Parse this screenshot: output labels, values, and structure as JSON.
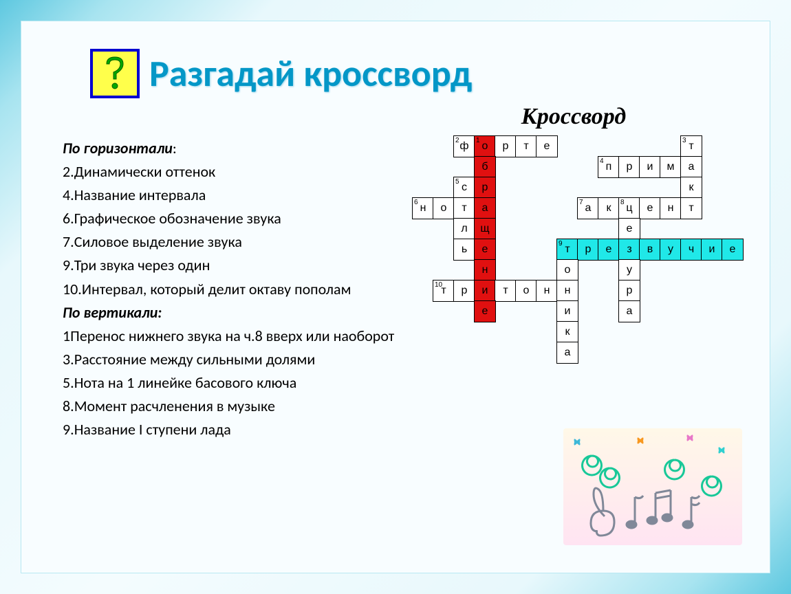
{
  "title": "Разгадай кроссворд",
  "crossword_label": "Кроссворд",
  "clues": {
    "horizontal_header": "По горизонтали",
    "horizontal": [
      "2.Динамически    оттенок",
      "4.Название интервала",
      "6.Графическое обозначение звука",
      "7.Силовое выделение звука",
      "9.Три звука через один",
      "10.Интервал, который делит октаву пополам"
    ],
    "vertical_header": "По вертикали:",
    "vertical": [
      "1Перенос нижнего звука на ч.8 вверх или наоборот",
      "3.Расстояние между сильными долями",
      "5.Нота на 1 линейке басового ключа",
      "8.Момент расчленения в музыке",
      "9.Название I ступени лада"
    ]
  },
  "crossword": {
    "cell_size": 32,
    "colors": {
      "default": "#ffffff",
      "red": "#e01010",
      "cyan": "#20e8e8"
    },
    "cells": [
      {
        "r": 0,
        "c": 2,
        "t": "ф",
        "num": "2"
      },
      {
        "r": 0,
        "c": 3,
        "t": "о",
        "num": "1",
        "bg": "red"
      },
      {
        "r": 0,
        "c": 4,
        "t": "р"
      },
      {
        "r": 0,
        "c": 5,
        "t": "т"
      },
      {
        "r": 0,
        "c": 6,
        "t": "е"
      },
      {
        "r": 0,
        "c": 13,
        "t": "т",
        "num": "3"
      },
      {
        "r": 1,
        "c": 3,
        "t": "б",
        "bg": "red"
      },
      {
        "r": 1,
        "c": 9,
        "t": "п",
        "num": "4"
      },
      {
        "r": 1,
        "c": 10,
        "t": "р"
      },
      {
        "r": 1,
        "c": 11,
        "t": "и"
      },
      {
        "r": 1,
        "c": 12,
        "t": "м"
      },
      {
        "r": 1,
        "c": 13,
        "t": "а"
      },
      {
        "r": 2,
        "c": 2,
        "t": "с",
        "num": "5"
      },
      {
        "r": 2,
        "c": 3,
        "t": "р",
        "bg": "red"
      },
      {
        "r": 2,
        "c": 13,
        "t": "к"
      },
      {
        "r": 3,
        "c": 0,
        "t": "н",
        "num": "6"
      },
      {
        "r": 3,
        "c": 1,
        "t": "о"
      },
      {
        "r": 3,
        "c": 2,
        "t": "т"
      },
      {
        "r": 3,
        "c": 3,
        "t": "а",
        "bg": "red"
      },
      {
        "r": 3,
        "c": 8,
        "t": "а",
        "num": "7"
      },
      {
        "r": 3,
        "c": 9,
        "t": "к"
      },
      {
        "r": 3,
        "c": 10,
        "t": "ц",
        "num": "8"
      },
      {
        "r": 3,
        "c": 11,
        "t": "е"
      },
      {
        "r": 3,
        "c": 12,
        "t": "н"
      },
      {
        "r": 3,
        "c": 13,
        "t": "т"
      },
      {
        "r": 4,
        "c": 2,
        "t": "л"
      },
      {
        "r": 4,
        "c": 3,
        "t": "щ",
        "bg": "red"
      },
      {
        "r": 4,
        "c": 10,
        "t": "е"
      },
      {
        "r": 5,
        "c": 2,
        "t": "ь"
      },
      {
        "r": 5,
        "c": 3,
        "t": "е",
        "bg": "red"
      },
      {
        "r": 5,
        "c": 7,
        "t": "т",
        "num": "9",
        "bg": "cyan"
      },
      {
        "r": 5,
        "c": 8,
        "t": "р",
        "bg": "cyan"
      },
      {
        "r": 5,
        "c": 9,
        "t": "е",
        "bg": "cyan"
      },
      {
        "r": 5,
        "c": 10,
        "t": "з",
        "bg": "cyan"
      },
      {
        "r": 5,
        "c": 11,
        "t": "в",
        "bg": "cyan"
      },
      {
        "r": 5,
        "c": 12,
        "t": "у",
        "bg": "cyan"
      },
      {
        "r": 5,
        "c": 13,
        "t": "ч",
        "bg": "cyan"
      },
      {
        "r": 5,
        "c": 14,
        "t": "и",
        "bg": "cyan"
      },
      {
        "r": 5,
        "c": 15,
        "t": "е",
        "bg": "cyan"
      },
      {
        "r": 6,
        "c": 3,
        "t": "н",
        "bg": "red"
      },
      {
        "r": 6,
        "c": 7,
        "t": "о"
      },
      {
        "r": 6,
        "c": 10,
        "t": "у"
      },
      {
        "r": 7,
        "c": 1,
        "t": "т",
        "num": "10"
      },
      {
        "r": 7,
        "c": 2,
        "t": "р"
      },
      {
        "r": 7,
        "c": 3,
        "t": "и",
        "bg": "red"
      },
      {
        "r": 7,
        "c": 4,
        "t": "т"
      },
      {
        "r": 7,
        "c": 5,
        "t": "о"
      },
      {
        "r": 7,
        "c": 6,
        "t": "н"
      },
      {
        "r": 7,
        "c": 7,
        "t": "н"
      },
      {
        "r": 7,
        "c": 10,
        "t": "р"
      },
      {
        "r": 8,
        "c": 3,
        "t": "е",
        "bg": "red"
      },
      {
        "r": 8,
        "c": 7,
        "t": "и"
      },
      {
        "r": 8,
        "c": 10,
        "t": "а"
      },
      {
        "r": 9,
        "c": 7,
        "t": "к"
      },
      {
        "r": 10,
        "c": 7,
        "t": "а"
      }
    ]
  }
}
